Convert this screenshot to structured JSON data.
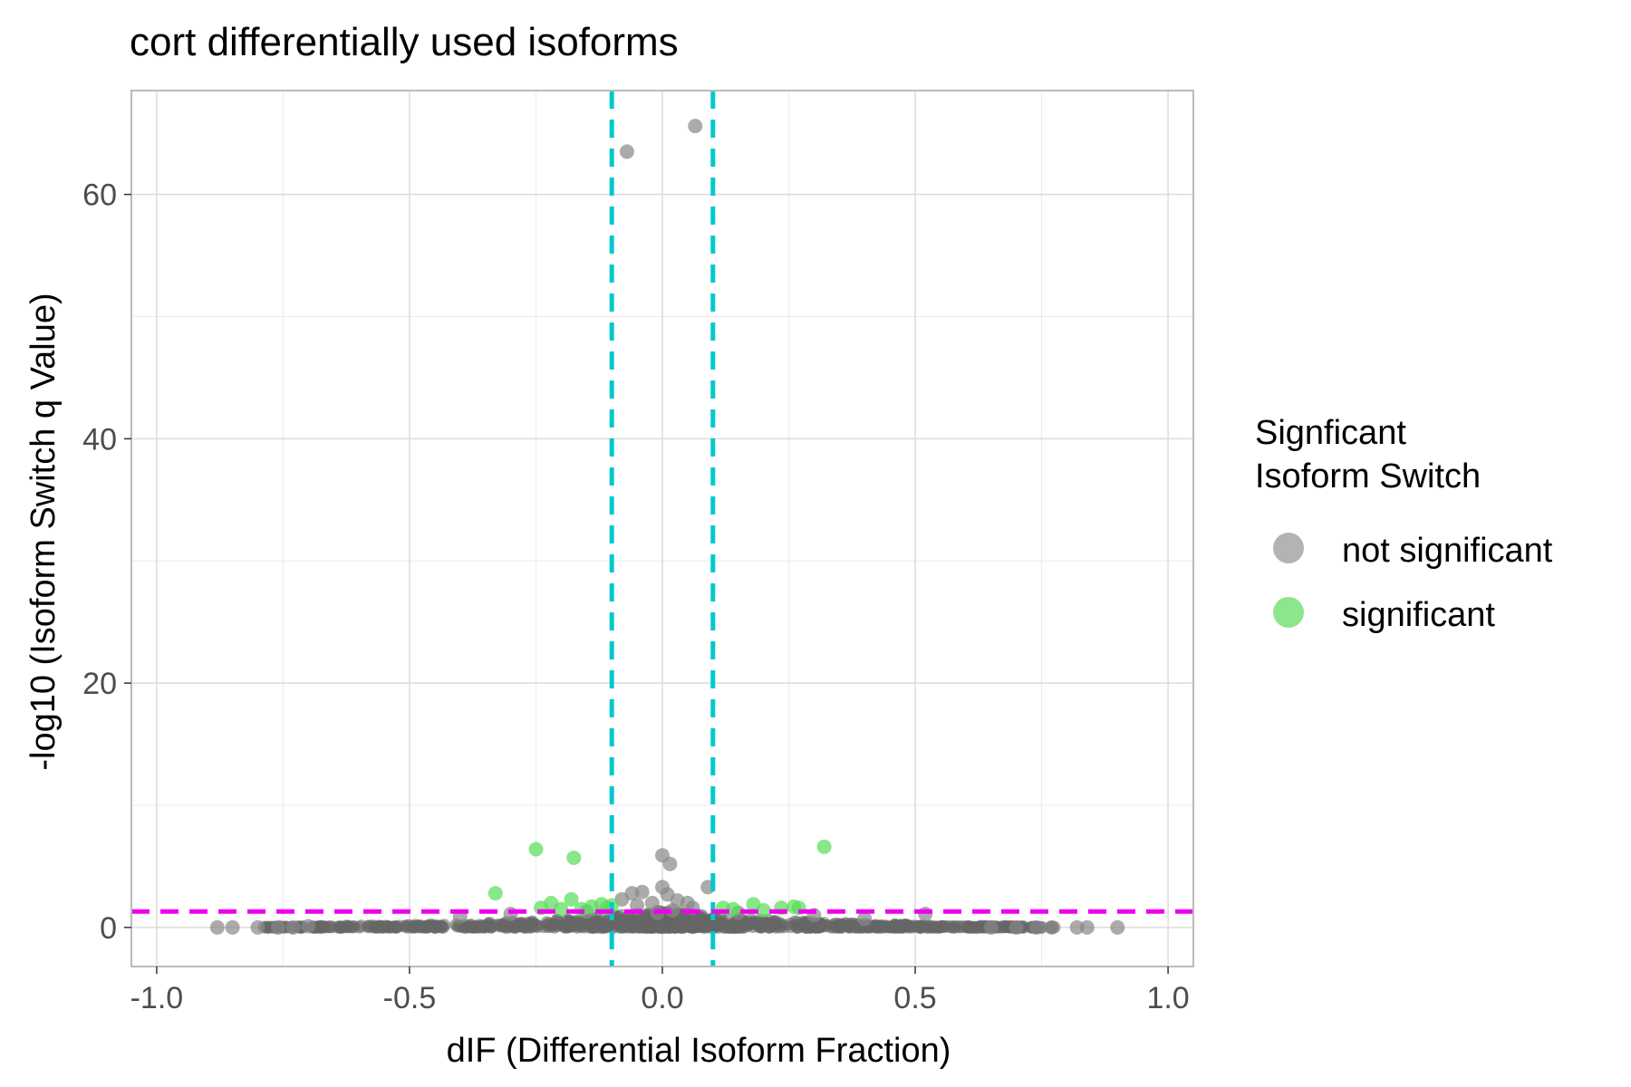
{
  "chart_data": {
    "type": "scatter",
    "title": "cort differentially used isoforms",
    "xlabel": "dIF (Differential Isoform Fraction)",
    "ylabel": "-log10 (Isoform Switch q Value)",
    "xlim": [
      -1.05,
      1.05
    ],
    "ylim": [
      -3.2,
      68.5
    ],
    "x_ticks": [
      -1.0,
      -0.5,
      0.0,
      0.5,
      1.0
    ],
    "x_tick_labels": [
      "-1.0",
      "-0.5",
      "0.0",
      "0.5",
      "1.0"
    ],
    "y_ticks": [
      0,
      20,
      40,
      60
    ],
    "y_tick_labels": [
      "0",
      "20",
      "40",
      "60"
    ],
    "grid": true,
    "legend_position": "right",
    "legend": {
      "title_lines": [
        "Signficant",
        "Isoform Switch"
      ],
      "entries": [
        {
          "label": "not significant",
          "color": "#999999"
        },
        {
          "label": "significant",
          "color": "#66dd66"
        }
      ]
    },
    "reference_lines": [
      {
        "orientation": "vertical",
        "value": -0.1,
        "color": "#00c8cc",
        "style": "dashed"
      },
      {
        "orientation": "vertical",
        "value": 0.1,
        "color": "#00c8cc",
        "style": "dashed"
      },
      {
        "orientation": "horizontal",
        "value": 1.3,
        "color": "#ee00ee",
        "style": "dashed"
      }
    ],
    "series": [
      {
        "name": "not significant",
        "color": "#777777",
        "points": [
          [
            -0.07,
            63.5
          ],
          [
            0.065,
            65.6
          ],
          [
            0.0,
            5.9
          ],
          [
            0.015,
            5.2
          ],
          [
            0.09,
            3.3
          ],
          [
            -0.06,
            2.8
          ],
          [
            -0.04,
            2.9
          ],
          [
            0.0,
            3.3
          ],
          [
            0.01,
            2.7
          ],
          [
            0.03,
            2.2
          ],
          [
            -0.02,
            2.0
          ],
          [
            0.05,
            2.0
          ],
          [
            -0.08,
            2.3
          ],
          [
            0.52,
            1.1
          ],
          [
            0.9,
            0.0
          ],
          [
            0.84,
            0.0
          ],
          [
            0.82,
            0.0
          ],
          [
            -0.88,
            0.0
          ],
          [
            -0.85,
            0.0
          ],
          [
            -0.8,
            0.0
          ],
          [
            -0.76,
            0.0
          ],
          [
            -0.73,
            0.0
          ],
          [
            -0.7,
            0.1
          ],
          [
            0.77,
            0.0
          ],
          [
            0.74,
            0.0
          ],
          [
            0.7,
            0.0
          ],
          [
            0.65,
            0.0
          ],
          [
            -0.4,
            0.9
          ],
          [
            0.4,
            0.7
          ],
          [
            -0.3,
            1.1
          ],
          [
            0.3,
            1.0
          ],
          [
            -0.15,
            1.3
          ],
          [
            0.15,
            1.2
          ],
          [
            -0.05,
            1.8
          ],
          [
            0.06,
            1.6
          ],
          [
            0.02,
            1.4
          ],
          [
            -0.01,
            1.2
          ]
        ]
      },
      {
        "name": "significant",
        "color": "#66dd66",
        "points": [
          [
            -0.25,
            6.4
          ],
          [
            -0.175,
            5.7
          ],
          [
            0.32,
            6.6
          ],
          [
            -0.33,
            2.8
          ],
          [
            -0.18,
            2.3
          ],
          [
            -0.22,
            2.0
          ],
          [
            -0.24,
            1.6
          ],
          [
            0.18,
            1.9
          ],
          [
            0.235,
            1.6
          ],
          [
            0.26,
            1.7
          ],
          [
            0.27,
            1.6
          ],
          [
            -0.14,
            1.7
          ],
          [
            -0.12,
            1.9
          ],
          [
            -0.1,
            1.8
          ],
          [
            0.12,
            1.6
          ],
          [
            0.14,
            1.5
          ],
          [
            -0.16,
            1.5
          ],
          [
            -0.2,
            1.5
          ],
          [
            0.2,
            1.4
          ],
          [
            -0.11,
            1.6
          ]
        ]
      }
    ]
  }
}
